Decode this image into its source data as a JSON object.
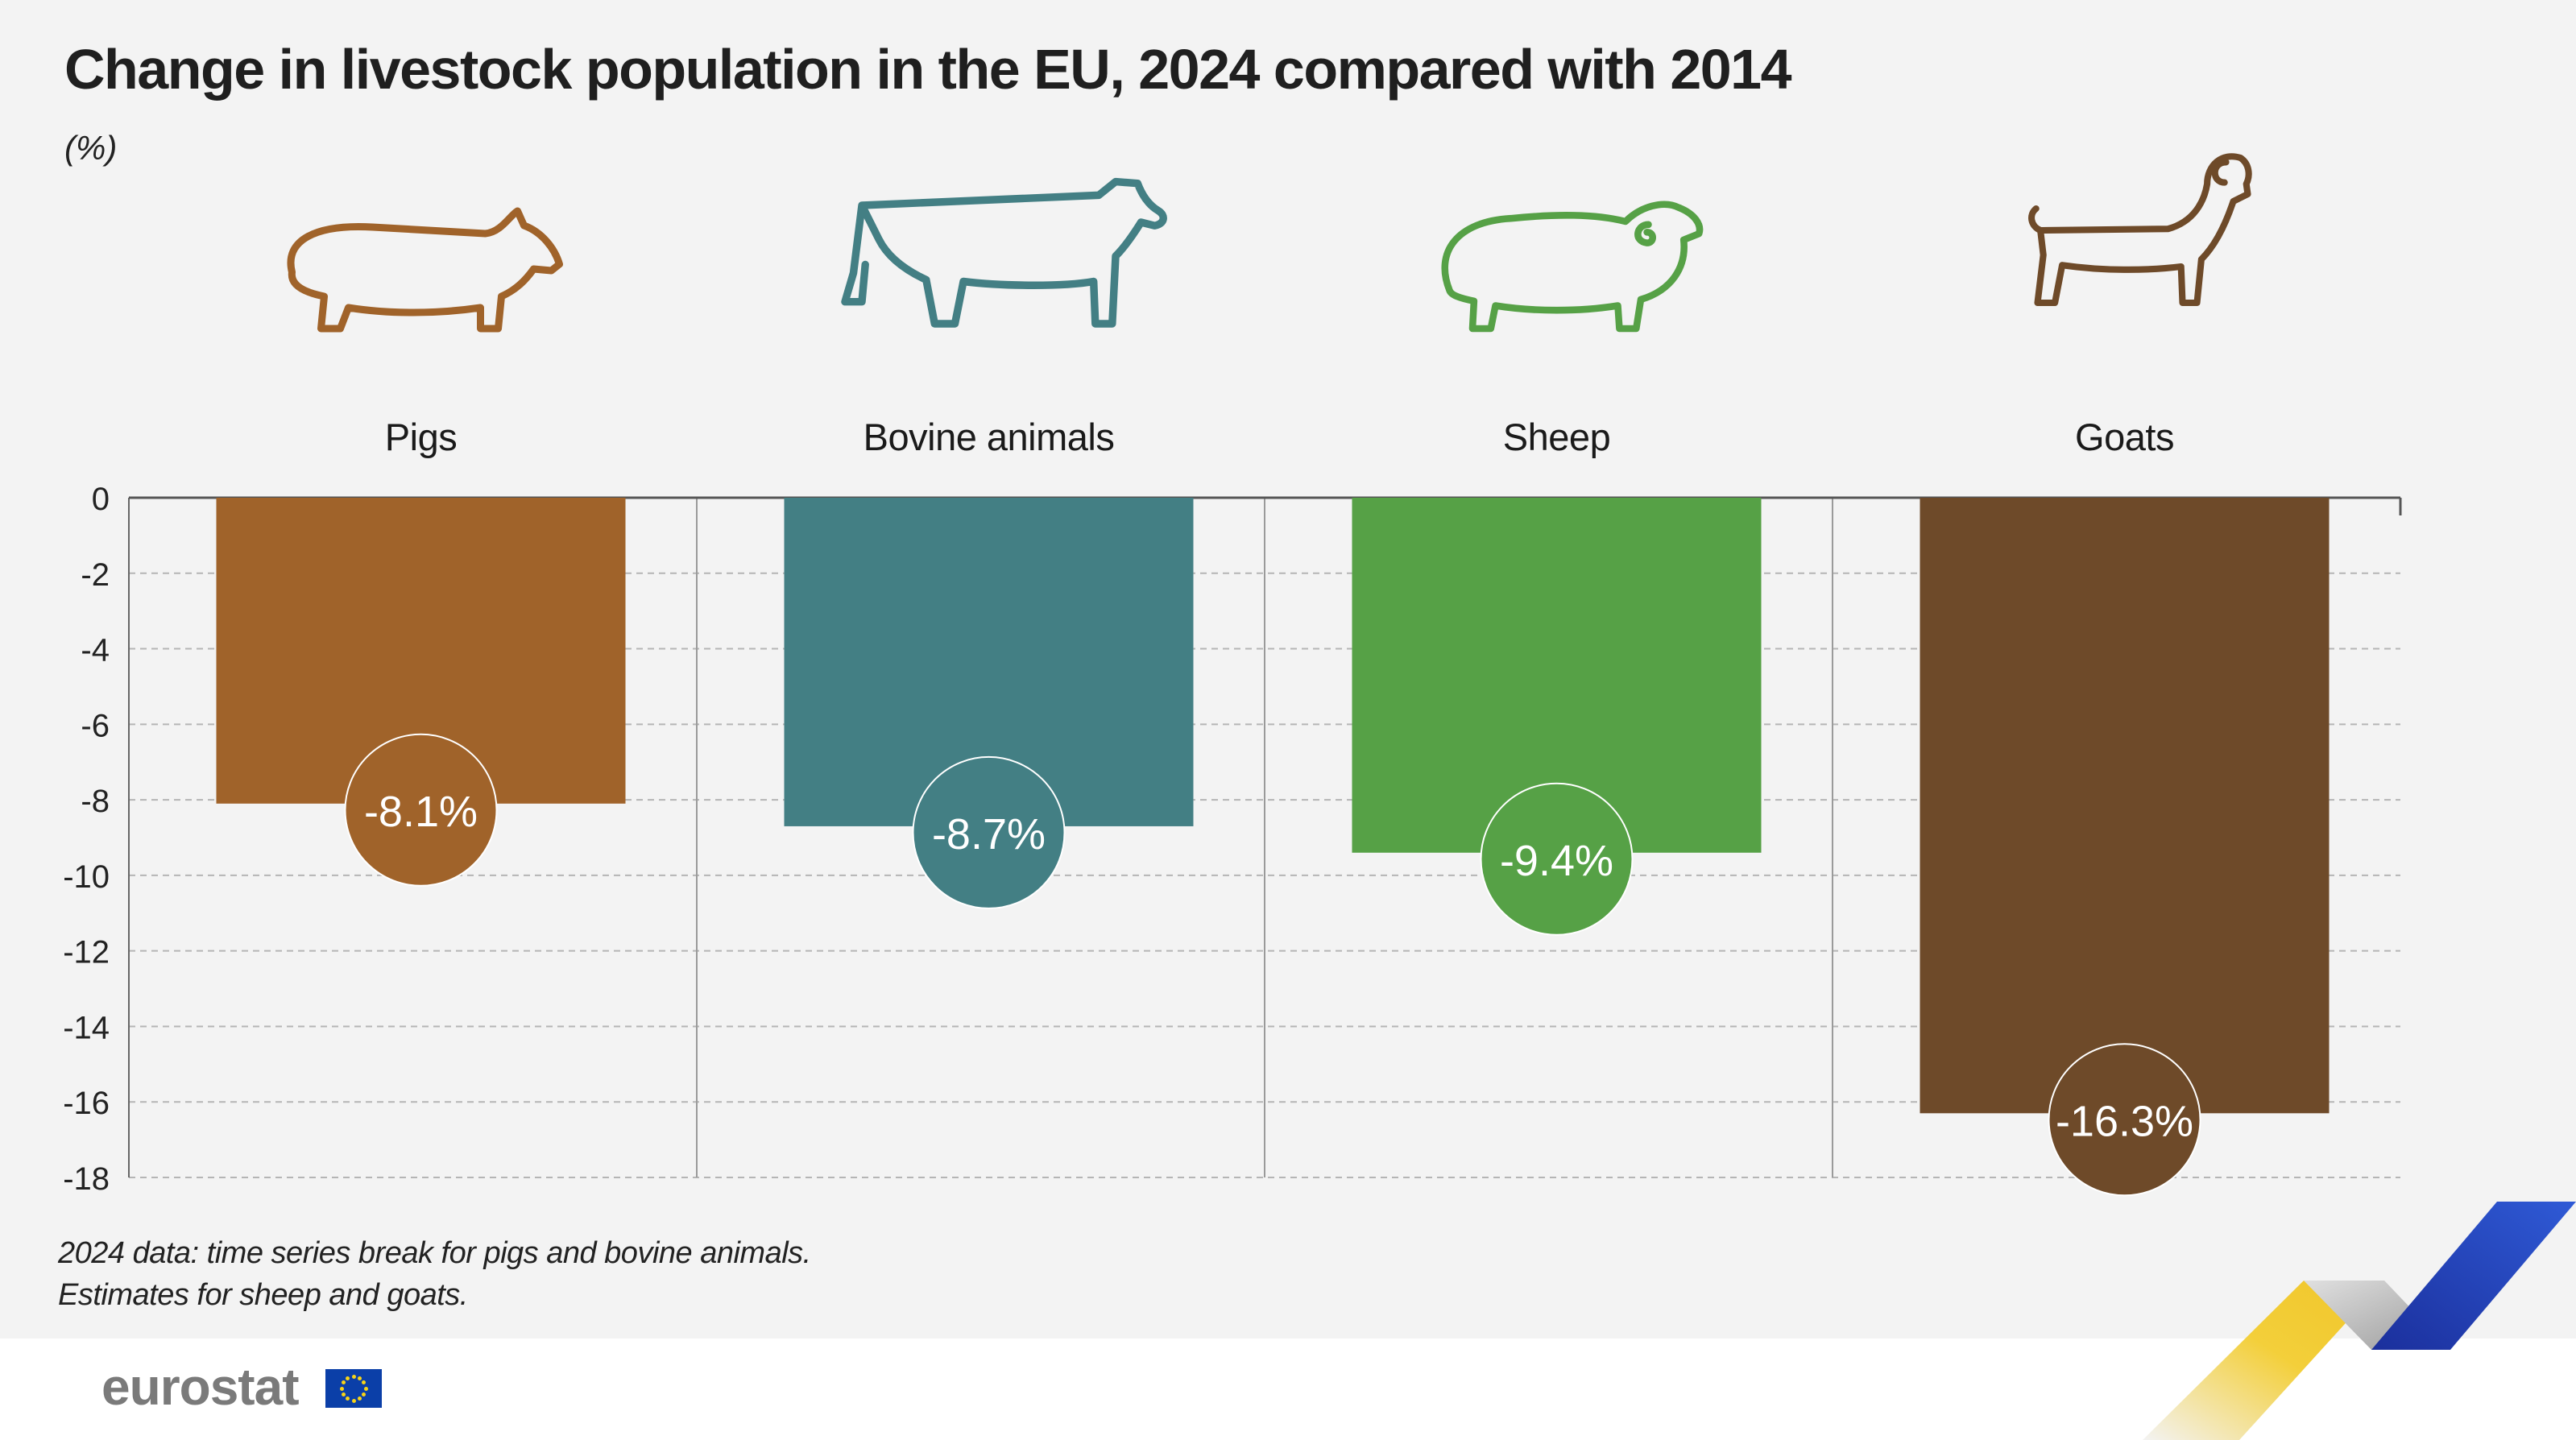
{
  "title": "Change in livestock population in the EU, 2024 compared with 2014",
  "unit_label": "(%)",
  "footnote": {
    "line1": "2024 data: time series break for pigs and bovine animals.",
    "line2": "Estimates for sheep and goats."
  },
  "logo": {
    "text": "eurostat",
    "flag_icon": "eu-flag-icon"
  },
  "colors": {
    "pigs": "#a0632a",
    "bovine": "#437f84",
    "sheep": "#56a146",
    "goats": "#6e4a29",
    "background": "#f3f3f3"
  },
  "chart_data": {
    "type": "bar",
    "orientation": "vertical",
    "categories": [
      "Pigs",
      "Bovine animals",
      "Sheep",
      "Goats"
    ],
    "values": [
      -8.1,
      -8.7,
      -9.4,
      -16.3
    ],
    "data_labels": [
      "-8.1%",
      "-8.7%",
      "-9.4%",
      "-16.3%"
    ],
    "category_icons": [
      "pig-icon",
      "cow-icon",
      "sheep-icon",
      "goat-icon"
    ],
    "ylim": [
      -18,
      0
    ],
    "yticks": [
      0,
      -2,
      -4,
      -6,
      -8,
      -10,
      -12,
      -14,
      -16,
      -18
    ],
    "ytick_labels": [
      "0",
      "-2",
      "-4",
      "-6",
      "-8",
      "-10",
      "-12",
      "-14",
      "-16",
      "-18"
    ],
    "grid": "horizontal dashed",
    "legend": "none",
    "bar_colors": [
      "#a0632a",
      "#437f84",
      "#56a146",
      "#6e4a29"
    ]
  }
}
